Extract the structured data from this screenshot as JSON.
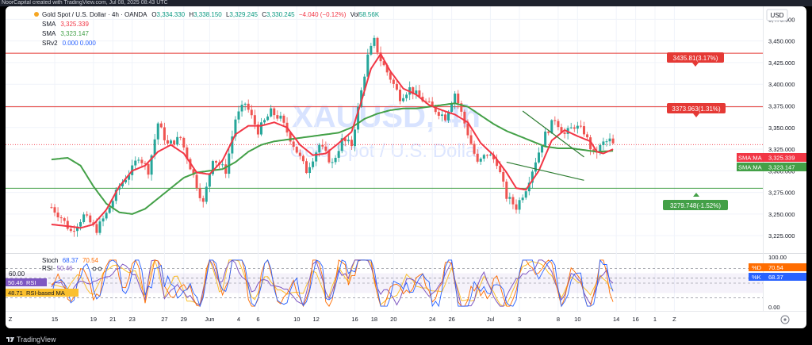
{
  "header": {
    "created_by": "NoorCapital created with TradingView.com, Jul 08, 2025 08:43 UTC",
    "symbol": "Gold Spot / U.S. Dollar · 4h · OANDA",
    "open_label": "O",
    "open": "3,334.330",
    "high_label": "H",
    "high": "3,338.150",
    "low_label": "L",
    "low": "3,329.245",
    "close_label": "C",
    "close": "3,330.245",
    "change": "−4.040 (−0.12%)",
    "vol_label": "Vol",
    "vol": "58.56K",
    "indicators": [
      {
        "name": "SMA",
        "values": "3,325.339"
      },
      {
        "name": "SMA",
        "values": "3,323.147"
      },
      {
        "name": "SRv2",
        "values": "0.000  0.000"
      }
    ],
    "currency": "USD"
  },
  "watermark": {
    "ticker": "XAUUSD, 4h",
    "name": "Gold Spot / U.S. Dollar"
  },
  "colors": {
    "up": "#26a69a",
    "down": "#ef5350",
    "sma_fast": "#f23645",
    "sma_slow": "#43a047",
    "resistance": "#e53935",
    "support": "#43a047",
    "trend": "#2e7d32",
    "stoch_k": "#2962ff",
    "stoch_d": "#ff6d00",
    "rsi": "#7e57c2",
    "rsi_ma": "#fbc02d"
  },
  "price_labels": [
    {
      "text": "3435.81(3.17%)",
      "kind": "resistance"
    },
    {
      "text": "3373.963(1.31%)",
      "kind": "resistance"
    },
    {
      "text": "3279.748(-1.52%)",
      "kind": "support"
    }
  ],
  "axis_badges": [
    {
      "tag": "SMA:MA",
      "value": "3,325.339",
      "color": "#f23645"
    },
    {
      "tag": "SMA:MA",
      "value": "3,323.147",
      "color": "#43a047"
    }
  ],
  "osc": {
    "stoch_label": "Stoch",
    "stoch_k": "68.37",
    "stoch_d": "70.54",
    "rsi_label": "RSI",
    "rsi_value": "50.46",
    "rsi_ma_label": "RSI-based MA",
    "rsi_ma_value": "48.71",
    "level_60": "60.00",
    "badge_d": {
      "tag": "%D",
      "value": "70.54"
    },
    "badge_k": {
      "tag": "%K",
      "value": "68.37"
    },
    "axis": [
      "100.00",
      "0.00"
    ]
  },
  "chart_data": {
    "type": "candlestick",
    "timeframe": "4h",
    "y_axis": {
      "ticks": [
        "3,475.000",
        "3,450.000",
        "3,425.000",
        "3,400.000",
        "3,375.000",
        "3,350.000",
        "3,325.000",
        "3,300.000",
        "3,275.000",
        "3,250.000",
        "3,225.000"
      ],
      "tick_values": [
        3475,
        3450,
        3425,
        3400,
        3375,
        3350,
        3325,
        3300,
        3275,
        3250,
        3225
      ],
      "range": [
        3205,
        3490
      ]
    },
    "x_axis": {
      "ticks": [
        "Z",
        "15",
        "19",
        "21",
        "23",
        "27",
        "29",
        "Jun",
        "4",
        "6",
        "10",
        "12",
        "16",
        "18",
        "20",
        "24",
        "26",
        "Jul",
        "3",
        "8",
        "10",
        "14",
        "16",
        "1",
        "Z"
      ],
      "tick_index": [
        -16,
        0,
        12,
        18,
        24,
        34,
        40,
        48,
        57,
        63,
        75,
        81,
        93,
        99,
        105,
        117,
        123,
        135,
        144,
        156,
        162,
        174,
        180,
        186,
        192
      ]
    },
    "horizontal_levels": [
      {
        "value": 3435.81,
        "label": "3435.81(3.17%)",
        "type": "resistance"
      },
      {
        "value": 3373.963,
        "label": "3373.963(1.31%)",
        "type": "resistance"
      },
      {
        "value": 3279.748,
        "label": "3279.748(-1.52%)",
        "type": "support"
      }
    ],
    "trendlines": [
      {
        "from": {
          "i": 145,
          "price": 3369
        },
        "to": {
          "i": 164,
          "price": 3316
        }
      },
      {
        "from": {
          "i": 140,
          "price": 3310
        },
        "to": {
          "i": 164,
          "price": 3289
        }
      }
    ],
    "last_close": 3330.245,
    "anchors": [
      [
        -1,
        3258
      ],
      [
        2,
        3246
      ],
      [
        5,
        3230
      ],
      [
        9,
        3248
      ],
      [
        13,
        3232
      ],
      [
        16,
        3250
      ],
      [
        20,
        3282
      ],
      [
        24,
        3302
      ],
      [
        26,
        3317
      ],
      [
        29,
        3300
      ],
      [
        32,
        3355
      ],
      [
        35,
        3330
      ],
      [
        39,
        3338
      ],
      [
        42,
        3305
      ],
      [
        46,
        3262
      ],
      [
        49,
        3315
      ],
      [
        53,
        3300
      ],
      [
        56,
        3360
      ],
      [
        59,
        3378
      ],
      [
        63,
        3346
      ],
      [
        67,
        3368
      ],
      [
        70,
        3360
      ],
      [
        74,
        3330
      ],
      [
        78,
        3300
      ],
      [
        82,
        3330
      ],
      [
        86,
        3308
      ],
      [
        89,
        3335
      ],
      [
        92,
        3330
      ],
      [
        94,
        3372
      ],
      [
        97,
        3432
      ],
      [
        99,
        3450
      ],
      [
        101,
        3428
      ],
      [
        104,
        3407
      ],
      [
        107,
        3385
      ],
      [
        110,
        3395
      ],
      [
        113,
        3385
      ],
      [
        117,
        3373
      ],
      [
        121,
        3362
      ],
      [
        124,
        3390
      ],
      [
        127,
        3355
      ],
      [
        131,
        3308
      ],
      [
        134,
        3320
      ],
      [
        137,
        3310
      ],
      [
        140,
        3270
      ],
      [
        143,
        3258
      ],
      [
        146,
        3280
      ],
      [
        149,
        3312
      ],
      [
        152,
        3342
      ],
      [
        155,
        3360
      ],
      [
        158,
        3342
      ],
      [
        161,
        3352
      ],
      [
        164,
        3345
      ],
      [
        167,
        3318
      ],
      [
        170,
        3332
      ],
      [
        172,
        3335
      ],
      [
        173,
        3330
      ]
    ],
    "sma_fast": [
      [
        -1,
        3238
      ],
      [
        4,
        3236
      ],
      [
        8,
        3234
      ],
      [
        12,
        3238
      ],
      [
        16,
        3255
      ],
      [
        20,
        3282
      ],
      [
        24,
        3300
      ],
      [
        28,
        3306
      ],
      [
        32,
        3322
      ],
      [
        36,
        3330
      ],
      [
        40,
        3320
      ],
      [
        44,
        3298
      ],
      [
        48,
        3296
      ],
      [
        52,
        3312
      ],
      [
        56,
        3342
      ],
      [
        60,
        3352
      ],
      [
        64,
        3352
      ],
      [
        68,
        3356
      ],
      [
        72,
        3350
      ],
      [
        76,
        3330
      ],
      [
        80,
        3318
      ],
      [
        84,
        3320
      ],
      [
        88,
        3332
      ],
      [
        92,
        3345
      ],
      [
        95,
        3380
      ],
      [
        98,
        3418
      ],
      [
        101,
        3435
      ],
      [
        104,
        3415
      ],
      [
        108,
        3395
      ],
      [
        112,
        3388
      ],
      [
        116,
        3376
      ],
      [
        120,
        3370
      ],
      [
        124,
        3365
      ],
      [
        128,
        3356
      ],
      [
        132,
        3332
      ],
      [
        136,
        3318
      ],
      [
        140,
        3298
      ],
      [
        143,
        3280
      ],
      [
        146,
        3278
      ],
      [
        150,
        3300
      ],
      [
        154,
        3335
      ],
      [
        158,
        3347
      ],
      [
        162,
        3340
      ],
      [
        166,
        3334
      ],
      [
        168,
        3322
      ],
      [
        170,
        3320
      ],
      [
        173,
        3325
      ]
    ],
    "sma_slow": [
      [
        -1,
        3313
      ],
      [
        4,
        3315
      ],
      [
        8,
        3306
      ],
      [
        12,
        3282
      ],
      [
        16,
        3262
      ],
      [
        20,
        3252
      ],
      [
        24,
        3250
      ],
      [
        28,
        3256
      ],
      [
        32,
        3268
      ],
      [
        36,
        3280
      ],
      [
        40,
        3292
      ],
      [
        44,
        3298
      ],
      [
        48,
        3300
      ],
      [
        52,
        3302
      ],
      [
        56,
        3310
      ],
      [
        60,
        3322
      ],
      [
        64,
        3330
      ],
      [
        68,
        3334
      ],
      [
        72,
        3336
      ],
      [
        76,
        3338
      ],
      [
        80,
        3340
      ],
      [
        84,
        3342
      ],
      [
        88,
        3344
      ],
      [
        92,
        3350
      ],
      [
        96,
        3360
      ],
      [
        100,
        3366
      ],
      [
        104,
        3370
      ],
      [
        108,
        3372
      ],
      [
        112,
        3372
      ],
      [
        116,
        3374
      ],
      [
        120,
        3376
      ],
      [
        124,
        3378
      ],
      [
        128,
        3374
      ],
      [
        132,
        3364
      ],
      [
        136,
        3354
      ],
      [
        140,
        3346
      ],
      [
        144,
        3340
      ],
      [
        148,
        3334
      ],
      [
        152,
        3328
      ],
      [
        156,
        3326
      ],
      [
        160,
        3326
      ],
      [
        164,
        3324
      ],
      [
        168,
        3322
      ],
      [
        173,
        3323
      ]
    ]
  }
}
